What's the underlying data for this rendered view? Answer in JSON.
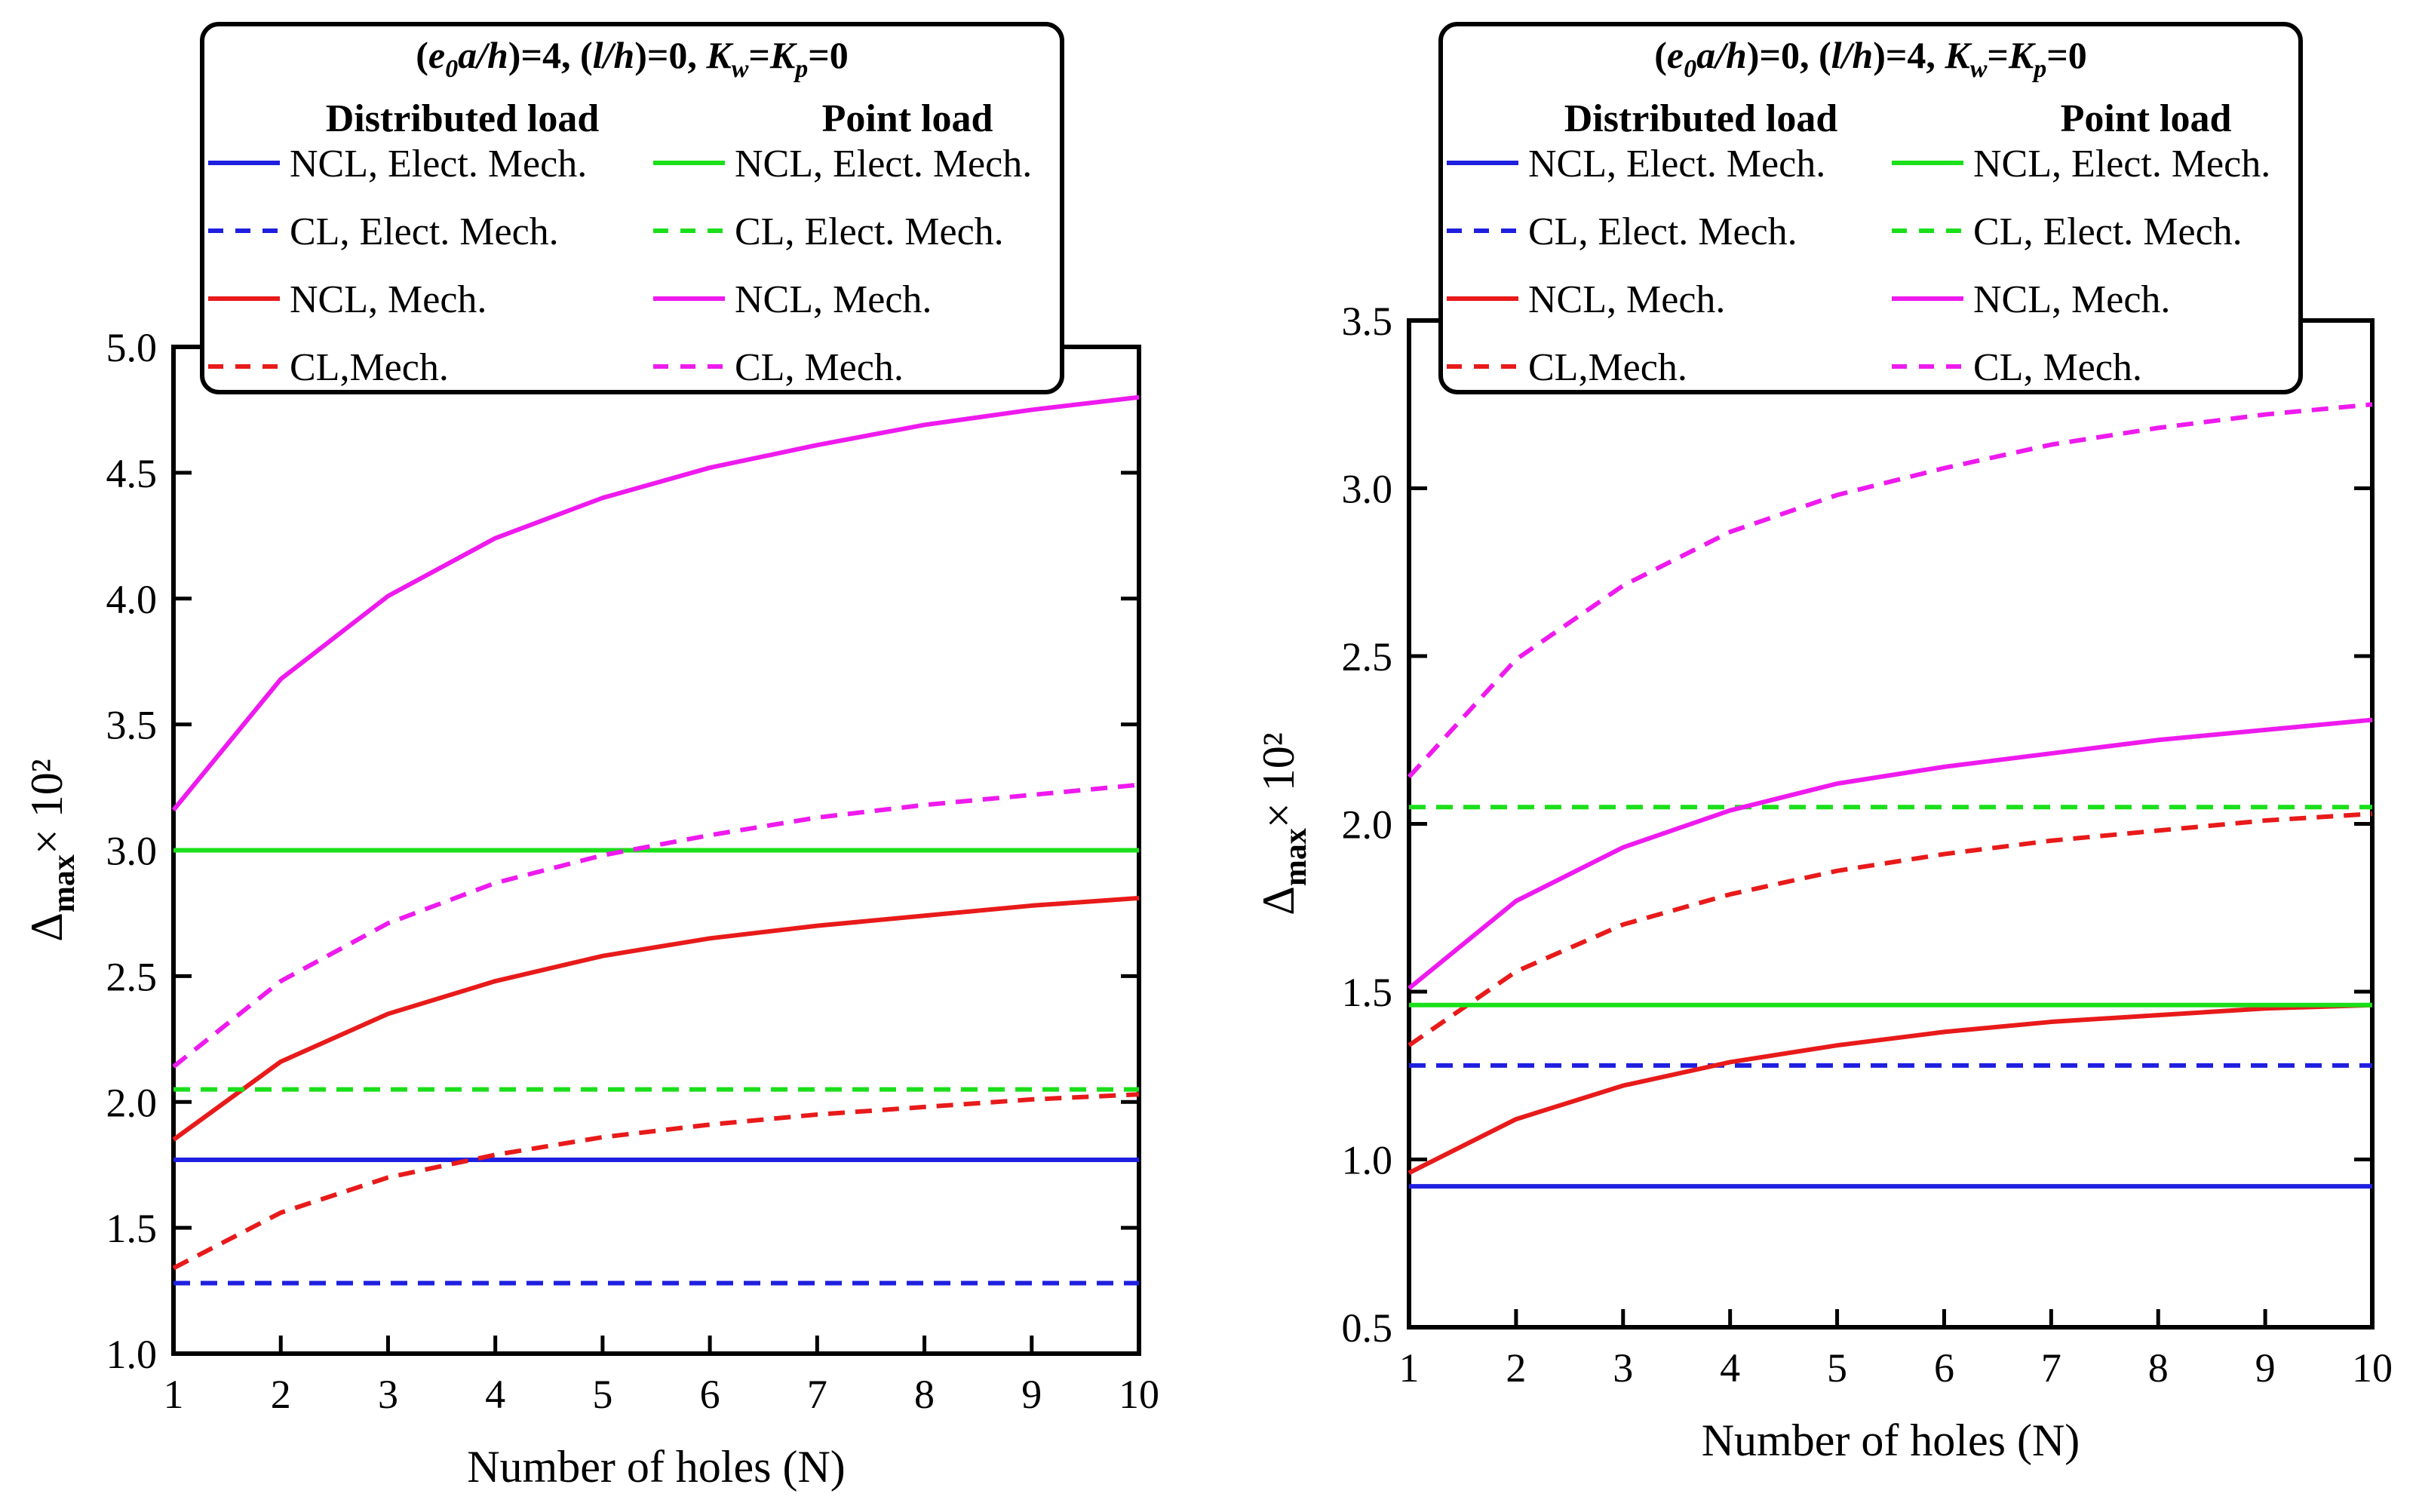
{
  "chart_data": [
    {
      "type": "line",
      "title_parts": [
        "(",
        "e",
        "0",
        "a/h",
        ")=4, (",
        "l/h",
        ")=0, ",
        "K",
        "w",
        "=",
        "K",
        "p",
        "=0"
      ],
      "title": "(e0a/h)=4, (l/h)=0, Kw=Kp=0",
      "legend_headers": [
        "Distributed load",
        "Point load"
      ],
      "xlabel": "Number of holes (N)",
      "ylabel": "Δmax× 10²",
      "ylabel_parts": [
        "Δ",
        "max",
        "× 10²"
      ],
      "xlim": [
        1,
        10
      ],
      "ylim": [
        1.0,
        5.0
      ],
      "xticks": [
        1,
        2,
        3,
        4,
        5,
        6,
        7,
        8,
        9,
        10
      ],
      "yticks": [
        "1.0",
        "1.5",
        "2.0",
        "2.5",
        "3.0",
        "3.5",
        "4.0",
        "4.5",
        "5.0"
      ],
      "x": [
        1,
        2,
        3,
        4,
        5,
        6,
        7,
        8,
        9,
        10
      ],
      "series": [
        {
          "name": "NCL, Elect. Mech.",
          "group": "Distributed load",
          "color": "#1f1fe0",
          "dash": false,
          "values": [
            1.77,
            1.77,
            1.77,
            1.77,
            1.77,
            1.77,
            1.77,
            1.77,
            1.77,
            1.77
          ]
        },
        {
          "name": "CL, Elect. Mech.",
          "group": "Distributed load",
          "color": "#1f1fe0",
          "dash": true,
          "values": [
            1.28,
            1.28,
            1.28,
            1.28,
            1.28,
            1.28,
            1.28,
            1.28,
            1.28,
            1.28
          ]
        },
        {
          "name": "NCL, Mech.",
          "group": "Distributed load",
          "color": "#e81a1a",
          "dash": false,
          "values": [
            1.85,
            2.16,
            2.35,
            2.48,
            2.58,
            2.65,
            2.7,
            2.74,
            2.78,
            2.81
          ]
        },
        {
          "name": "CL,Mech.",
          "group": "Distributed load",
          "color": "#e81a1a",
          "dash": true,
          "values": [
            1.34,
            1.56,
            1.7,
            1.79,
            1.86,
            1.91,
            1.95,
            1.98,
            2.01,
            2.03
          ]
        },
        {
          "name": "NCL, Elect. Mech.",
          "group": "Point load",
          "color": "#1adf1a",
          "dash": false,
          "values": [
            3.0,
            3.0,
            3.0,
            3.0,
            3.0,
            3.0,
            3.0,
            3.0,
            3.0,
            3.0
          ]
        },
        {
          "name": "CL, Elect. Mech.",
          "group": "Point load",
          "color": "#1adf1a",
          "dash": true,
          "values": [
            2.05,
            2.05,
            2.05,
            2.05,
            2.05,
            2.05,
            2.05,
            2.05,
            2.05,
            2.05
          ]
        },
        {
          "name": "NCL, Mech.",
          "group": "Point load",
          "color": "#ee1aee",
          "dash": false,
          "values": [
            3.16,
            3.68,
            4.01,
            4.24,
            4.4,
            4.52,
            4.61,
            4.69,
            4.75,
            4.8
          ]
        },
        {
          "name": "CL, Mech.",
          "group": "Point load",
          "color": "#ee1aee",
          "dash": true,
          "values": [
            2.14,
            2.48,
            2.71,
            2.87,
            2.98,
            3.06,
            3.13,
            3.18,
            3.22,
            3.26
          ]
        }
      ]
    },
    {
      "type": "line",
      "title_parts": [
        "(",
        "e",
        "0",
        "a/h",
        ")=0, (",
        "l/h",
        ")=4, ",
        "K",
        "w",
        "=",
        "K",
        "p",
        "=0"
      ],
      "title": "(e0a/h)=0, (l/h)=4, Kw=Kp=0",
      "legend_headers": [
        "Distributed load",
        "Point load"
      ],
      "xlabel": "Number of holes (N)",
      "ylabel": "Δmax× 10²",
      "ylabel_parts": [
        "Δ",
        "max",
        "× 10²"
      ],
      "xlim": [
        1,
        10
      ],
      "ylim": [
        0.5,
        3.5
      ],
      "xticks": [
        1,
        2,
        3,
        4,
        5,
        6,
        7,
        8,
        9,
        10
      ],
      "yticks": [
        "0.5",
        "1.0",
        "1.5",
        "2.0",
        "2.5",
        "3.0",
        "3.5"
      ],
      "x": [
        1,
        2,
        3,
        4,
        5,
        6,
        7,
        8,
        9,
        10
      ],
      "series": [
        {
          "name": "NCL, Elect. Mech.",
          "group": "Distributed load",
          "color": "#1f1fe0",
          "dash": false,
          "values": [
            0.92,
            0.92,
            0.92,
            0.92,
            0.92,
            0.92,
            0.92,
            0.92,
            0.92,
            0.92
          ]
        },
        {
          "name": "CL, Elect. Mech.",
          "group": "Distributed load",
          "color": "#1f1fe0",
          "dash": true,
          "values": [
            1.28,
            1.28,
            1.28,
            1.28,
            1.28,
            1.28,
            1.28,
            1.28,
            1.28,
            1.28
          ]
        },
        {
          "name": "NCL, Mech.",
          "group": "Distributed load",
          "color": "#e81a1a",
          "dash": false,
          "values": [
            0.96,
            1.12,
            1.22,
            1.29,
            1.34,
            1.38,
            1.41,
            1.43,
            1.45,
            1.46
          ]
        },
        {
          "name": "CL,Mech.",
          "group": "Distributed load",
          "color": "#e81a1a",
          "dash": true,
          "values": [
            1.34,
            1.56,
            1.7,
            1.79,
            1.86,
            1.91,
            1.95,
            1.98,
            2.01,
            2.03
          ]
        },
        {
          "name": "NCL, Elect. Mech.",
          "group": "Point load",
          "color": "#1adf1a",
          "dash": false,
          "values": [
            1.46,
            1.46,
            1.46,
            1.46,
            1.46,
            1.46,
            1.46,
            1.46,
            1.46,
            1.46
          ]
        },
        {
          "name": "CL, Elect. Mech.",
          "group": "Point load",
          "color": "#1adf1a",
          "dash": true,
          "values": [
            2.05,
            2.05,
            2.05,
            2.05,
            2.05,
            2.05,
            2.05,
            2.05,
            2.05,
            2.05
          ]
        },
        {
          "name": "NCL, Mech.",
          "group": "Point load",
          "color": "#ee1aee",
          "dash": false,
          "values": [
            1.51,
            1.77,
            1.93,
            2.04,
            2.12,
            2.17,
            2.21,
            2.25,
            2.28,
            2.31
          ]
        },
        {
          "name": "CL, Mech.",
          "group": "Point load",
          "color": "#ee1aee",
          "dash": true,
          "values": [
            2.14,
            2.49,
            2.71,
            2.87,
            2.98,
            3.06,
            3.13,
            3.18,
            3.22,
            3.25
          ]
        }
      ]
    }
  ]
}
